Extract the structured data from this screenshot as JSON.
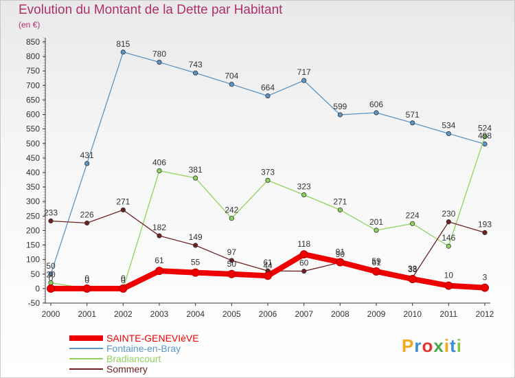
{
  "chart_data": {
    "type": "line",
    "title": "Evolution du Montant de la Dette par Habitant",
    "subtitle": "(en €)",
    "x": [
      "2000",
      "2001",
      "2002",
      "2003",
      "2004",
      "2005",
      "2006",
      "2007",
      "2008",
      "2009",
      "2010",
      "2011",
      "2012"
    ],
    "ylim": [
      -50,
      850
    ],
    "yticks": [
      -50,
      0,
      50,
      100,
      150,
      200,
      250,
      300,
      350,
      400,
      450,
      500,
      550,
      600,
      650,
      700,
      750,
      800,
      850
    ],
    "grid": false,
    "legend_position": "bottom-left",
    "series": [
      {
        "name": "SAINTE-GENEVIèVE",
        "color": "#ee0000",
        "values": [
          0,
          0,
          0,
          61,
          55,
          50,
          44,
          118,
          91,
          59,
          33,
          10,
          3
        ],
        "labels": [
          "0",
          "0",
          "0",
          "61",
          "55",
          "50",
          "44",
          "118",
          "91",
          "59",
          "33",
          "10",
          "3"
        ]
      },
      {
        "name": "Fontaine-en-Bray",
        "color": "#5b95c7",
        "values": [
          50,
          431,
          815,
          780,
          743,
          704,
          664,
          717,
          599,
          606,
          571,
          534,
          498
        ],
        "labels": [
          "50",
          "431",
          "815",
          "780",
          "743",
          "704",
          "664",
          "717",
          "599",
          "606",
          "571",
          "534",
          "498"
        ]
      },
      {
        "name": "Bradiancourt",
        "color": "#8fd35c",
        "values": [
          20,
          0,
          0,
          406,
          381,
          242,
          373,
          323,
          271,
          201,
          224,
          146,
          524
        ],
        "labels": [
          "20",
          "0",
          "0",
          "406",
          "381",
          "242",
          "373",
          "323",
          "271",
          "201",
          "224",
          "146",
          "524"
        ]
      },
      {
        "name": "Sommery",
        "color": "#6e2020",
        "values": [
          233,
          226,
          271,
          182,
          149,
          97,
          61,
          60,
          90,
          61,
          38,
          230,
          193
        ],
        "labels": [
          "233",
          "226",
          "271",
          "182",
          "149",
          "97",
          "61",
          "60",
          "90",
          "61",
          "38",
          "230",
          "193"
        ]
      }
    ]
  },
  "logo": {
    "text": "Proxiti",
    "colors": [
      "#f2a81a",
      "#3a8fd0",
      "#e3342b",
      "#4aa84a",
      "#f2a81a",
      "#3a8fd0",
      "#8ac640"
    ]
  }
}
